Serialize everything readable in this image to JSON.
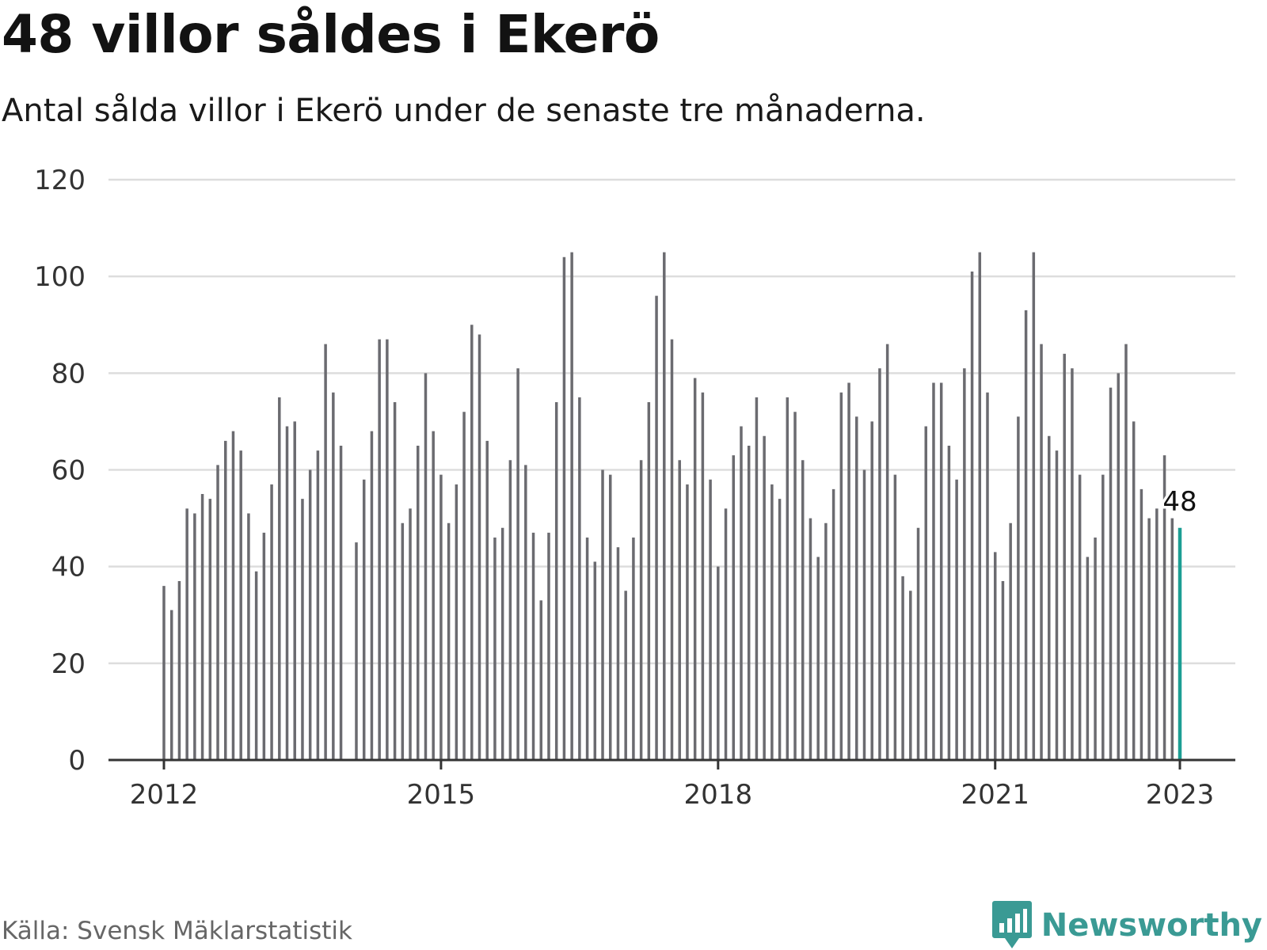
{
  "header": {
    "title": "48 villor såldes i Ekerö",
    "subtitle": "Antal sålda villor i Ekerö under de senaste tre månaderna."
  },
  "footer": {
    "source": "Källa: Svensk Mäklarstatistik",
    "brand": "Newsworthy",
    "logo_icon": "bar-chart-speech-bubble-icon"
  },
  "colors": {
    "bar": "#6b6b70",
    "highlight": "#1c9e94",
    "grid": "#dddddd",
    "axis": "#333333",
    "brand": "#3a9a94"
  },
  "chart_data": {
    "type": "bar",
    "title": "48 villor såldes i Ekerö",
    "subtitle": "Antal sålda villor i Ekerö under de senaste tre månaderna.",
    "xlabel": "",
    "ylabel": "",
    "ylim": [
      0,
      120
    ],
    "yticks": [
      0,
      20,
      40,
      60,
      80,
      100,
      120
    ],
    "xticks": [
      "2012",
      "2015",
      "2018",
      "2021",
      "2023"
    ],
    "grid": true,
    "start_month": "2012-01",
    "end_month": "2023-01",
    "values": [
      36,
      31,
      37,
      52,
      51,
      55,
      54,
      61,
      66,
      68,
      64,
      51,
      39,
      47,
      57,
      75,
      69,
      70,
      54,
      60,
      64,
      86,
      76,
      65,
      null,
      45,
      58,
      68,
      87,
      87,
      74,
      49,
      52,
      65,
      80,
      68,
      59,
      49,
      57,
      72,
      90,
      88,
      66,
      46,
      48,
      62,
      81,
      61,
      47,
      33,
      47,
      74,
      104,
      105,
      75,
      46,
      41,
      60,
      59,
      44,
      35,
      46,
      62,
      74,
      96,
      105,
      87,
      62,
      57,
      79,
      76,
      58,
      40,
      52,
      63,
      69,
      65,
      75,
      67,
      57,
      54,
      75,
      72,
      62,
      50,
      42,
      49,
      56,
      76,
      78,
      71,
      60,
      70,
      81,
      86,
      59,
      38,
      35,
      48,
      69,
      78,
      78,
      65,
      58,
      81,
      101,
      105,
      76,
      43,
      37,
      49,
      71,
      93,
      105,
      86,
      67,
      64,
      84,
      81,
      59,
      42,
      46,
      59,
      77,
      80,
      86,
      70,
      56,
      50,
      52,
      63,
      50,
      48
    ],
    "highlight": {
      "label": "48",
      "value": 48
    }
  }
}
